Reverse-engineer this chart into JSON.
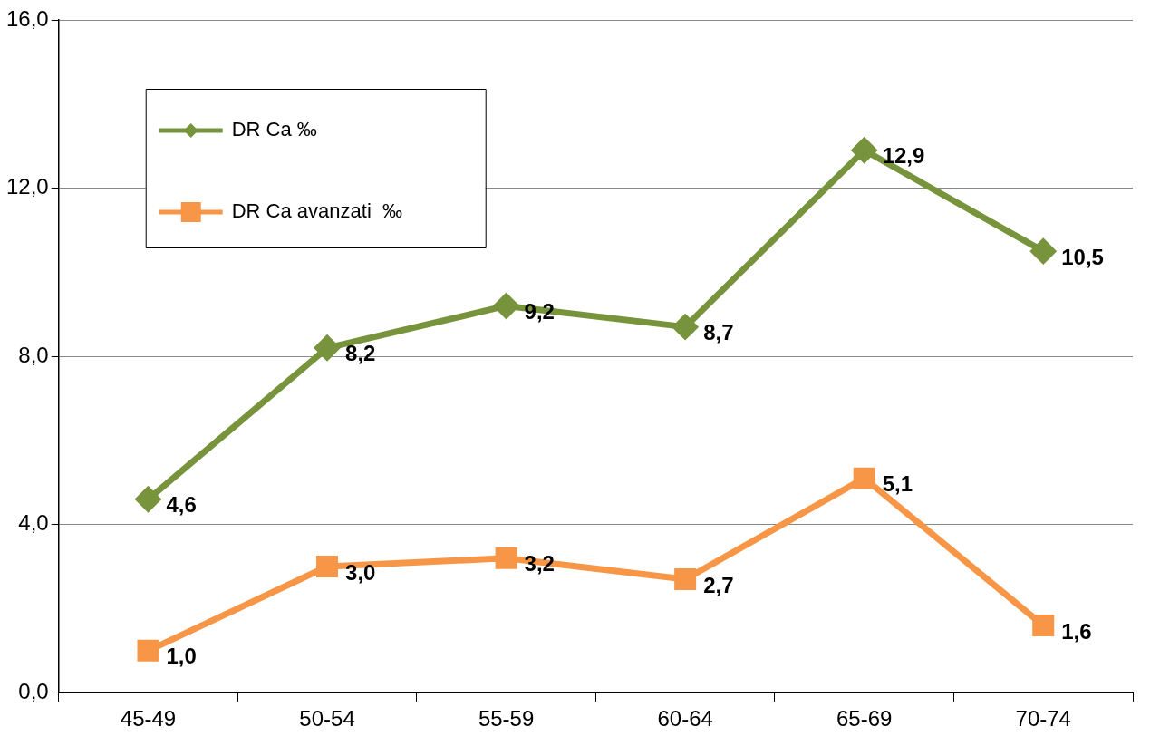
{
  "chart_data": {
    "type": "line",
    "categories": [
      "45-49",
      "50-54",
      "55-59",
      "60-64",
      "65-69",
      "70-74"
    ],
    "series": [
      {
        "name": "DR Ca ‰",
        "color": "#77933c",
        "marker": "diamond",
        "values": [
          4.6,
          8.2,
          9.2,
          8.7,
          12.9,
          10.5
        ],
        "value_labels": [
          "4,6",
          "8,2",
          "9,2",
          "8,7",
          "12,9",
          "10,5"
        ]
      },
      {
        "name": "DR Ca avanzati  ‰",
        "color": "#f79646",
        "marker": "square",
        "values": [
          1.0,
          3.0,
          3.2,
          2.7,
          5.1,
          1.6
        ],
        "value_labels": [
          "1,0",
          "3,0",
          "3,2",
          "2,7",
          "5,1",
          "1,6"
        ]
      }
    ],
    "ylim": [
      0,
      16
    ],
    "yticks": [
      {
        "value": 0,
        "label": "0,0"
      },
      {
        "value": 4,
        "label": "4,0"
      },
      {
        "value": 8,
        "label": "8,0"
      },
      {
        "value": 12,
        "label": "12,0"
      },
      {
        "value": 16,
        "label": "16,0"
      }
    ],
    "grid": "y",
    "legend": "top left"
  }
}
